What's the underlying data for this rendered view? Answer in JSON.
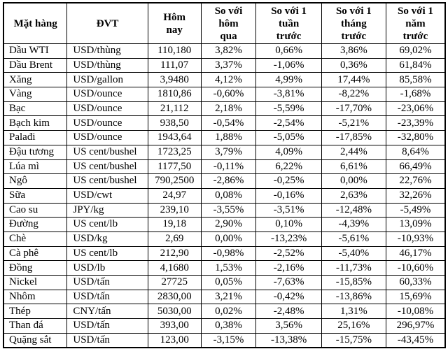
{
  "colors": {
    "background": "#ffffff",
    "border": "#000000",
    "text": "#000000"
  },
  "table": {
    "headers": [
      "Mặt hàng",
      "ĐVT",
      "Hôm\nnay",
      "So với\nhôm\nqua",
      "So với 1\ntuần\ntrước",
      "So với 1\ntháng\ntrước",
      "So với 1\nnăm\ntrước"
    ],
    "rows": [
      [
        "Dầu WTI",
        "USD/thùng",
        "110,180",
        "3,82%",
        "0,66%",
        "3,86%",
        "69,02%"
      ],
      [
        "Dầu Brent",
        "USD/thùng",
        "111,07",
        "3,37%",
        "-1,06%",
        "0,36%",
        "61,84%"
      ],
      [
        "Xăng",
        "USD/gallon",
        "3,9480",
        "4,12%",
        "4,99%",
        "17,44%",
        "85,58%"
      ],
      [
        "Vàng",
        "USD/ounce",
        "1810,86",
        "-0,60%",
        "-3,81%",
        "-8,22%",
        "-1,68%"
      ],
      [
        "Bạc",
        "USD/ounce",
        "21,112",
        "2,18%",
        "-5,59%",
        "-17,70%",
        "-23,06%"
      ],
      [
        "Bạch kim",
        "USD/ounce",
        "938,50",
        "-0,54%",
        "-2,54%",
        "-5,21%",
        "-23,39%"
      ],
      [
        "Palađi",
        "USD/ounce",
        "1943,64",
        "1,88%",
        "-5,05%",
        "-17,85%",
        "-32,80%"
      ],
      [
        "Đậu tương",
        "US cent/bushel",
        "1723,25",
        "3,79%",
        "4,09%",
        "2,44%",
        "8,64%"
      ],
      [
        "Lúa mì",
        "US cent/bushel",
        "1177,50",
        "-0,11%",
        "6,22%",
        "6,61%",
        "66,49%"
      ],
      [
        "Ngô",
        "US cent/bushel",
        "790,2500",
        "-2,86%",
        "-0,25%",
        "0,00%",
        "22,76%"
      ],
      [
        "Sữa",
        "USD/cwt",
        "24,97",
        "0,08%",
        "-0,16%",
        "2,63%",
        "32,26%"
      ],
      [
        "Cao su",
        "JPY/kg",
        "239,10",
        "-3,55%",
        "-3,51%",
        "-12,48%",
        "-5,49%"
      ],
      [
        "Đường",
        "US cent/lb",
        "19,18",
        "2,90%",
        "0,10%",
        "-4,39%",
        "13,09%"
      ],
      [
        "Chè",
        "USD/kg",
        "2,69",
        "0,00%",
        "-13,23%",
        "-5,61%",
        "-10,93%"
      ],
      [
        "Cà phê",
        "US cent/lb",
        "212,90",
        "-0,98%",
        "-2,52%",
        "-5,40%",
        "46,17%"
      ],
      [
        "Đồng",
        "USD/lb",
        "4,1680",
        "1,53%",
        "-2,16%",
        "-11,73%",
        "-10,60%"
      ],
      [
        "Nickel",
        "USD/tấn",
        "27725",
        "0,05%",
        "-7,63%",
        "-15,85%",
        "60,33%"
      ],
      [
        "Nhôm",
        "USD/tấn",
        "2830,00",
        "3,21%",
        "-0,42%",
        "-13,86%",
        "15,69%"
      ],
      [
        "Thép",
        "CNY/tấn",
        "5030,00",
        "0,02%",
        "-2,48%",
        "1,31%",
        "-10,08%"
      ],
      [
        "Than đá",
        "USD/tấn",
        "393,00",
        "0,38%",
        "3,56%",
        "25,16%",
        "296,97%"
      ],
      [
        "Quặng sắt",
        "USD/tấn",
        "123,00",
        "-3,15%",
        "-13,38%",
        "-15,75%",
        "-43,45%"
      ]
    ]
  }
}
